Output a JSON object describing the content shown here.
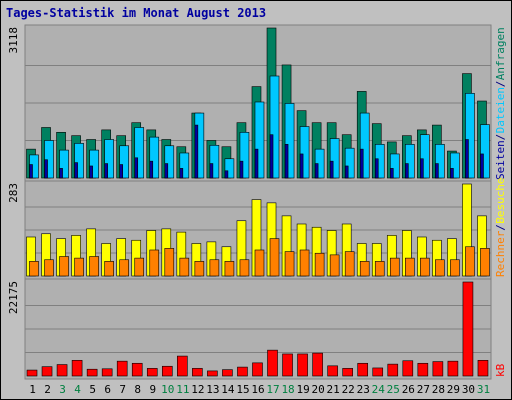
{
  "chart_data": {
    "type": "bar",
    "title": "Tages-Statistik im Monat August 2013",
    "categories": [
      "1",
      "2",
      "3",
      "4",
      "5",
      "6",
      "7",
      "8",
      "9",
      "10",
      "11",
      "12",
      "13",
      "14",
      "15",
      "16",
      "17",
      "18",
      "19",
      "20",
      "21",
      "22",
      "23",
      "24",
      "25",
      "26",
      "27",
      "28",
      "29",
      "30",
      "31"
    ],
    "weekend_days": [
      "3",
      "4",
      "10",
      "11",
      "17",
      "18",
      "24",
      "25",
      "31"
    ],
    "panels": [
      {
        "id": "requests",
        "ymax_label": "3118",
        "ymax": 3118,
        "series": [
          {
            "name": "Anfragen",
            "color": "#008060",
            "values": [
              600,
              1050,
              950,
              880,
              800,
              1000,
              880,
              1150,
              1000,
              800,
              650,
              1350,
              780,
              650,
              1150,
              1900,
              3118,
              2350,
              1400,
              1150,
              1150,
              900,
              1800,
              1130,
              750,
              880,
              1000,
              1100,
              560,
              2170,
              1600
            ]
          },
          {
            "name": "Dateien",
            "color": "#00c8ff",
            "values": [
              480,
              780,
              580,
              720,
              580,
              800,
              670,
              1050,
              850,
              670,
              520,
              1350,
              680,
              400,
              950,
              1580,
              2120,
              1550,
              1070,
              600,
              820,
              620,
              1350,
              700,
              500,
              700,
              900,
              700,
              520,
              1760,
              1110
            ]
          },
          {
            "name": "Seiten",
            "color": "#0000a0",
            "values": [
              280,
              380,
              200,
              320,
              250,
              300,
              280,
              420,
              350,
              300,
              200,
              1100,
              300,
              150,
              350,
              600,
              900,
              700,
              500,
              300,
              350,
              250,
              600,
              400,
              200,
              300,
              400,
              300,
              200,
              800,
              500
            ]
          }
        ]
      },
      {
        "id": "visits",
        "ymax_label": "283",
        "ymax": 283,
        "series": [
          {
            "name": "Besuche",
            "color": "#ffff00",
            "values": [
              120,
              130,
              115,
              125,
              145,
              100,
              115,
              110,
              140,
              145,
              135,
              100,
              105,
              90,
              170,
              235,
              225,
              185,
              160,
              150,
              140,
              160,
              100,
              100,
              125,
              140,
              120,
              110,
              115,
              283,
              185
            ]
          },
          {
            "name": "Rechner",
            "color": "#ff8000",
            "values": [
              45,
              50,
              60,
              55,
              60,
              45,
              50,
              55,
              80,
              85,
              55,
              45,
              50,
              45,
              50,
              80,
              115,
              75,
              80,
              70,
              65,
              75,
              45,
              45,
              55,
              55,
              55,
              50,
              50,
              90,
              85
            ]
          }
        ]
      },
      {
        "id": "traffic",
        "ymax_label": "22175",
        "ymax": 22175,
        "series": [
          {
            "name": "kB",
            "color": "#ff0000",
            "values": [
              1400,
              2200,
              2700,
              3700,
              1600,
              1700,
              3500,
              3000,
              1800,
              2300,
              4700,
              1800,
              1200,
              1500,
              2100,
              3100,
              6100,
              5200,
              5200,
              5400,
              2400,
              1800,
              3000,
              1900,
              2800,
              3600,
              3000,
              3400,
              3500,
              22175,
              3700
            ]
          }
        ]
      }
    ],
    "right_labels": {
      "requests": [
        "Anfragen",
        "Dateien",
        "Seiten"
      ],
      "visits": [
        "Besuche",
        "Rechner"
      ],
      "traffic": [
        "kB"
      ]
    }
  }
}
